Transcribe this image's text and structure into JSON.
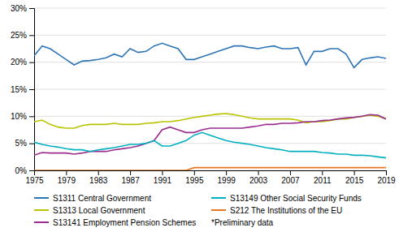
{
  "chart_data": {
    "type": "line",
    "x": [
      1975,
      1976,
      1977,
      1978,
      1979,
      1980,
      1981,
      1982,
      1983,
      1984,
      1985,
      1986,
      1987,
      1988,
      1989,
      1990,
      1991,
      1992,
      1993,
      1994,
      1995,
      1996,
      1997,
      1998,
      1999,
      2000,
      2001,
      2002,
      2003,
      2004,
      2005,
      2006,
      2007,
      2008,
      2009,
      2010,
      2011,
      2012,
      2013,
      2014,
      2015,
      2016,
      2017,
      2018,
      2019
    ],
    "series": [
      {
        "name": "S1311 Central Government",
        "color": "#2E75B6",
        "values": [
          21.2,
          23.0,
          22.5,
          21.5,
          20.5,
          19.5,
          20.2,
          20.3,
          20.5,
          20.8,
          21.5,
          21.0,
          22.5,
          21.8,
          22.0,
          23.0,
          23.5,
          23.0,
          22.5,
          20.5,
          20.5,
          21.0,
          21.5,
          22.0,
          22.5,
          23.0,
          23.0,
          22.7,
          22.5,
          22.8,
          23.0,
          22.5,
          22.5,
          22.7,
          19.5,
          22.0,
          22.0,
          22.5,
          22.5,
          21.5,
          19.0,
          20.5,
          20.8,
          21.0,
          20.7
        ]
      },
      {
        "name": "S1313 Local Government",
        "color": "#B8C400",
        "values": [
          9.0,
          9.3,
          8.5,
          8.0,
          7.8,
          7.8,
          8.3,
          8.5,
          8.5,
          8.5,
          8.7,
          8.5,
          8.5,
          8.5,
          8.7,
          8.8,
          9.0,
          9.0,
          9.2,
          9.5,
          9.8,
          10.0,
          10.2,
          10.4,
          10.5,
          10.3,
          10.0,
          9.7,
          9.5,
          9.5,
          9.5,
          9.5,
          9.5,
          9.3,
          8.8,
          9.0,
          9.0,
          9.2,
          9.5,
          9.5,
          9.8,
          10.0,
          10.2,
          10.0,
          9.5
        ]
      },
      {
        "name": "S13141 Employment Pension Schemes",
        "color": "#9B2D8E",
        "values": [
          2.8,
          3.3,
          3.2,
          3.2,
          3.2,
          3.0,
          3.2,
          3.5,
          3.5,
          3.5,
          3.8,
          4.0,
          4.2,
          4.5,
          5.0,
          5.5,
          7.5,
          8.0,
          7.5,
          7.0,
          7.0,
          7.5,
          7.8,
          7.8,
          7.8,
          7.8,
          7.8,
          8.0,
          8.2,
          8.5,
          8.5,
          8.7,
          8.7,
          8.8,
          9.0,
          9.0,
          9.2,
          9.3,
          9.5,
          9.7,
          9.8,
          10.0,
          10.3,
          10.2,
          9.5
        ]
      },
      {
        "name": "S13149 Other Social Security Funds",
        "color": "#00B0C0",
        "values": [
          5.2,
          4.8,
          4.5,
          4.3,
          4.0,
          3.8,
          3.8,
          3.5,
          3.8,
          4.0,
          4.2,
          4.5,
          4.8,
          4.8,
          5.0,
          5.5,
          4.5,
          4.5,
          5.0,
          5.5,
          6.5,
          7.0,
          6.5,
          6.0,
          5.5,
          5.2,
          5.0,
          4.8,
          4.5,
          4.2,
          4.0,
          3.8,
          3.5,
          3.5,
          3.5,
          3.5,
          3.3,
          3.2,
          3.0,
          3.0,
          2.8,
          2.8,
          2.7,
          2.5,
          2.3
        ]
      },
      {
        "name": "S212 The Institutions of the EU",
        "color": "#E87722",
        "values": [
          0.0,
          0.0,
          0.0,
          0.0,
          0.0,
          0.0,
          0.0,
          0.0,
          0.0,
          0.0,
          0.0,
          0.0,
          0.0,
          0.0,
          0.0,
          0.0,
          0.0,
          0.0,
          0.0,
          0.0,
          0.5,
          0.5,
          0.5,
          0.5,
          0.5,
          0.5,
          0.5,
          0.5,
          0.5,
          0.5,
          0.5,
          0.5,
          0.5,
          0.5,
          0.5,
          0.5,
          0.5,
          0.5,
          0.5,
          0.5,
          0.5,
          0.5,
          0.5,
          0.5,
          0.5
        ]
      }
    ],
    "xlim": [
      1975,
      2019
    ],
    "xticks": [
      1975,
      1979,
      1983,
      1987,
      1991,
      1995,
      1999,
      2003,
      2007,
      2011,
      2015,
      2019
    ],
    "ylim": [
      0,
      30
    ],
    "yticks": [
      {
        "value": 0,
        "label": "0%"
      },
      {
        "value": 5,
        "label": "5%"
      },
      {
        "value": 10,
        "label": "10%"
      },
      {
        "value": 15,
        "label": "15%"
      },
      {
        "value": 20,
        "label": "20%"
      },
      {
        "value": 25,
        "label": "25%"
      },
      {
        "value": 30,
        "label": "30%"
      }
    ],
    "grid": true,
    "legend": "bottom",
    "annotations": [
      "*Preliminary data"
    ]
  }
}
